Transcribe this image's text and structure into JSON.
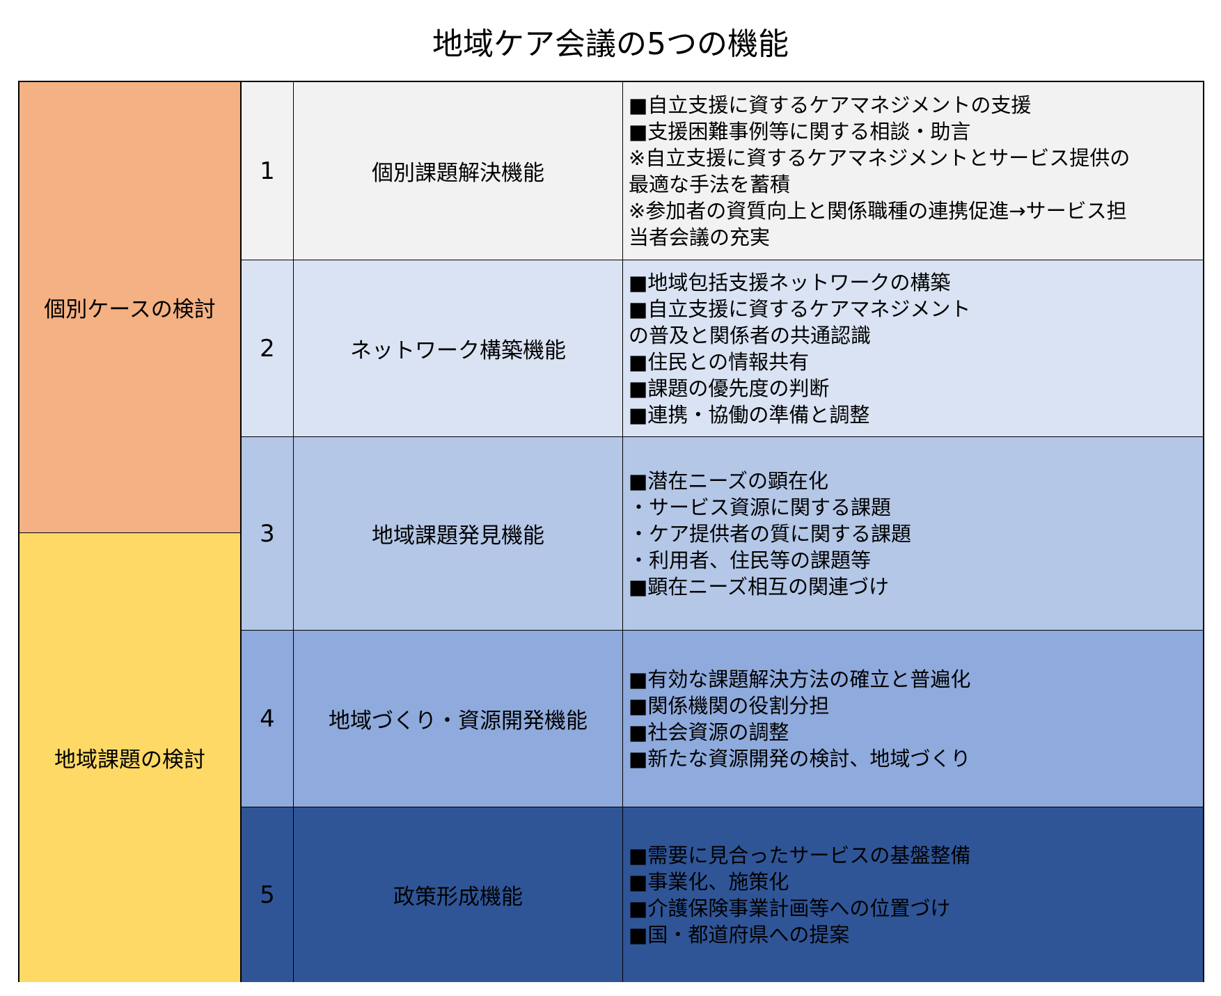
{
  "title": "地域ケア会議の5つの機能",
  "colors": {
    "individual": "#F4B183",
    "regional": "#FFD966",
    "row1": "#F2F2F2",
    "row2": "#DAE3F3",
    "row3": "#B4C7E7",
    "row4": "#8FAADC",
    "row5": "#2F5597"
  },
  "categories": [
    {
      "label": "個別ケースの検討"
    },
    {
      "label": "地域課題の検討"
    }
  ],
  "rows": [
    {
      "num": "1",
      "name": "個別課題解決機能",
      "lines": [
        "■自立支援に資するケアマネジメントの支援",
        "■支援困難事例等に関する相談・助言",
        "※自立支援に資するケアマネジメントとサービス提供の",
        "最適な手法を蓄積",
        "※参加者の資質向上と関係職種の連携促進→サービス担",
        "当者会議の充実"
      ]
    },
    {
      "num": "2",
      "name": "ネットワーク構築機能",
      "lines": [
        "■地域包括支援ネットワークの構築",
        "■自立支援に資するケアマネジメント",
        "の普及と関係者の共通認識",
        "■住民との情報共有",
        "■課題の優先度の判断",
        "■連携・協働の準備と調整"
      ]
    },
    {
      "num": "3",
      "name": "地域課題発見機能",
      "lines": [
        "■潜在ニーズの顕在化",
        "・サービス資源に関する課題",
        "・ケア提供者の質に関する課題",
        "・利用者、住民等の課題等",
        "■顕在ニーズ相互の関連づけ"
      ]
    },
    {
      "num": "4",
      "name": "地域づくり・資源開発機能",
      "lines": [
        "■有効な課題解決方法の確立と普遍化",
        "■関係機関の役割分担",
        "■社会資源の調整",
        "■新たな資源開発の検討、地域づくり"
      ]
    },
    {
      "num": "5",
      "name": "政策形成機能",
      "lines": [
        "■需要に見合ったサービスの基盤整備",
        "■事業化、施策化",
        "■介護保険事業計画等への位置づけ",
        "■国・都道府県への提案"
      ]
    }
  ]
}
